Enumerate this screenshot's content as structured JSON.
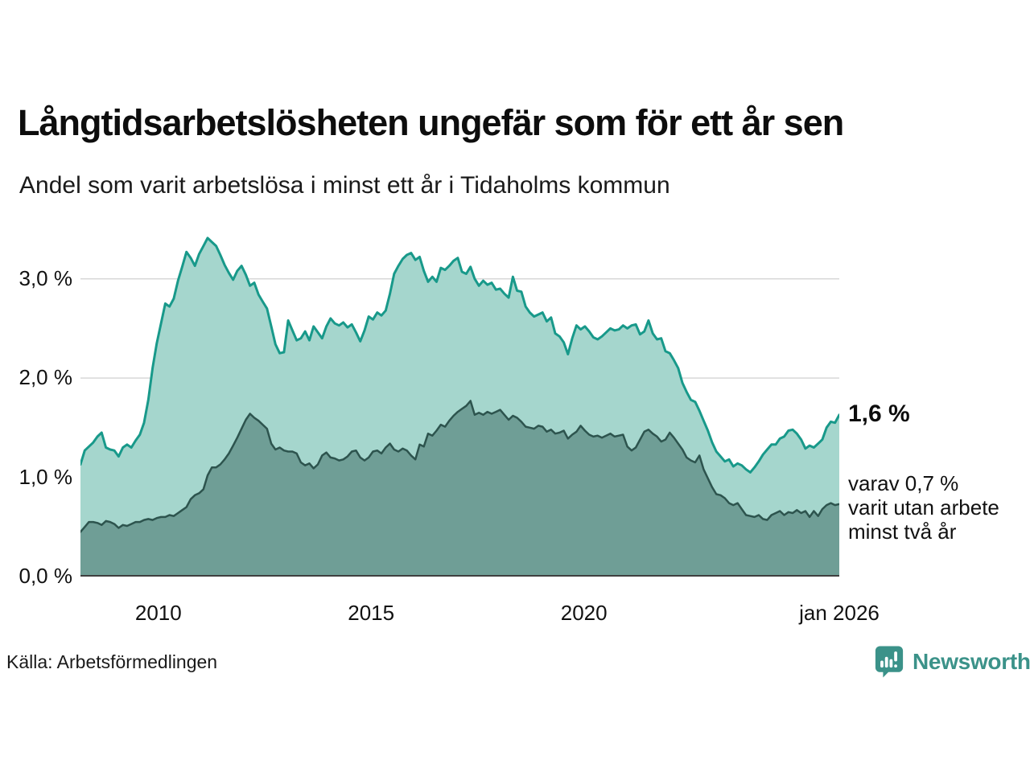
{
  "header": {
    "title": "Långtidsarbetslösheten ungefär som för ett år sen",
    "subtitle": "Andel som varit arbetslösa i minst ett år i Tidaholms kommun"
  },
  "chart_data": {
    "type": "area",
    "title": "Långtidsarbetslösheten ungefär som för ett år sen",
    "subtitle": "Andel som varit arbetslösa i minst ett år i Tidaholms kommun",
    "x_start": 2008.17,
    "x_end": 2026.0,
    "ylim": [
      0,
      3.54
    ],
    "grid": "horizontal",
    "yticks": [
      {
        "value": 0.0,
        "label": "0,0 %"
      },
      {
        "value": 1.0,
        "label": "1,0 %"
      },
      {
        "value": 2.0,
        "label": "2,0 %"
      },
      {
        "value": 3.0,
        "label": "3,0 %"
      }
    ],
    "xticks": [
      {
        "value": 2010,
        "label": "2010"
      },
      {
        "value": 2015,
        "label": "2015"
      },
      {
        "value": 2020,
        "label": "2020"
      },
      {
        "value": 2026.0,
        "label": "jan 2026"
      }
    ],
    "series": [
      {
        "name": "Andel som varit arbetslösa i minst ett år",
        "line_color": "#18998a",
        "fill_color": "#a5d6cd",
        "line_width": 3,
        "last_value": "1,6 %",
        "values": [
          1.13,
          1.27,
          1.31,
          1.35,
          1.41,
          1.45,
          1.3,
          1.28,
          1.27,
          1.21,
          1.3,
          1.33,
          1.3,
          1.37,
          1.43,
          1.55,
          1.78,
          2.1,
          2.35,
          2.55,
          2.75,
          2.72,
          2.8,
          2.98,
          3.12,
          3.27,
          3.21,
          3.13,
          3.25,
          3.33,
          3.41,
          3.37,
          3.33,
          3.24,
          3.14,
          3.06,
          2.99,
          3.08,
          3.13,
          3.04,
          2.93,
          2.96,
          2.84,
          2.77,
          2.7,
          2.52,
          2.34,
          2.25,
          2.26,
          2.58,
          2.48,
          2.38,
          2.4,
          2.47,
          2.38,
          2.52,
          2.46,
          2.4,
          2.52,
          2.6,
          2.55,
          2.53,
          2.56,
          2.51,
          2.54,
          2.46,
          2.37,
          2.48,
          2.62,
          2.59,
          2.66,
          2.63,
          2.68,
          2.85,
          3.05,
          3.13,
          3.2,
          3.24,
          3.26,
          3.19,
          3.22,
          3.08,
          2.97,
          3.02,
          2.97,
          3.11,
          3.09,
          3.13,
          3.18,
          3.21,
          3.07,
          3.05,
          3.12,
          3.0,
          2.93,
          2.98,
          2.94,
          2.96,
          2.89,
          2.9,
          2.85,
          2.81,
          3.02,
          2.88,
          2.87,
          2.72,
          2.66,
          2.62,
          2.64,
          2.66,
          2.57,
          2.61,
          2.45,
          2.42,
          2.36,
          2.24,
          2.4,
          2.53,
          2.49,
          2.52,
          2.47,
          2.41,
          2.39,
          2.42,
          2.46,
          2.5,
          2.48,
          2.49,
          2.53,
          2.5,
          2.53,
          2.54,
          2.44,
          2.47,
          2.58,
          2.45,
          2.39,
          2.4,
          2.27,
          2.25,
          2.18,
          2.1,
          1.95,
          1.86,
          1.78,
          1.76,
          1.67,
          1.57,
          1.47,
          1.35,
          1.26,
          1.21,
          1.16,
          1.18,
          1.11,
          1.14,
          1.12,
          1.08,
          1.05,
          1.1,
          1.16,
          1.23,
          1.28,
          1.33,
          1.33,
          1.39,
          1.41,
          1.47,
          1.48,
          1.44,
          1.38,
          1.29,
          1.32,
          1.3,
          1.34,
          1.38,
          1.5,
          1.56,
          1.55,
          1.63
        ]
      },
      {
        "name": "varav utan arbete minst två år",
        "line_color": "#2d544e",
        "fill_color": "#6f9e96",
        "line_width": 2.5,
        "last_value": "0,7 %",
        "values": [
          0.45,
          0.5,
          0.55,
          0.55,
          0.54,
          0.52,
          0.56,
          0.55,
          0.53,
          0.49,
          0.52,
          0.51,
          0.53,
          0.55,
          0.55,
          0.57,
          0.58,
          0.57,
          0.59,
          0.6,
          0.6,
          0.62,
          0.61,
          0.64,
          0.67,
          0.7,
          0.78,
          0.82,
          0.84,
          0.88,
          1.02,
          1.1,
          1.1,
          1.13,
          1.18,
          1.24,
          1.32,
          1.4,
          1.49,
          1.58,
          1.64,
          1.6,
          1.57,
          1.53,
          1.49,
          1.34,
          1.28,
          1.3,
          1.27,
          1.26,
          1.26,
          1.24,
          1.15,
          1.12,
          1.14,
          1.09,
          1.13,
          1.22,
          1.25,
          1.2,
          1.19,
          1.17,
          1.18,
          1.21,
          1.26,
          1.27,
          1.2,
          1.17,
          1.2,
          1.26,
          1.27,
          1.24,
          1.3,
          1.34,
          1.28,
          1.26,
          1.29,
          1.27,
          1.22,
          1.18,
          1.33,
          1.31,
          1.44,
          1.42,
          1.47,
          1.53,
          1.51,
          1.57,
          1.62,
          1.66,
          1.69,
          1.72,
          1.77,
          1.63,
          1.65,
          1.63,
          1.66,
          1.64,
          1.66,
          1.68,
          1.63,
          1.58,
          1.62,
          1.6,
          1.56,
          1.51,
          1.5,
          1.49,
          1.52,
          1.51,
          1.46,
          1.48,
          1.44,
          1.45,
          1.47,
          1.39,
          1.43,
          1.46,
          1.52,
          1.47,
          1.43,
          1.41,
          1.42,
          1.4,
          1.42,
          1.44,
          1.41,
          1.42,
          1.43,
          1.31,
          1.27,
          1.3,
          1.38,
          1.46,
          1.48,
          1.44,
          1.41,
          1.36,
          1.38,
          1.45,
          1.4,
          1.34,
          1.28,
          1.2,
          1.17,
          1.15,
          1.22,
          1.08,
          0.99,
          0.9,
          0.83,
          0.82,
          0.79,
          0.74,
          0.72,
          0.74,
          0.68,
          0.62,
          0.61,
          0.6,
          0.62,
          0.58,
          0.57,
          0.62,
          0.64,
          0.66,
          0.62,
          0.65,
          0.64,
          0.67,
          0.64,
          0.66,
          0.6,
          0.66,
          0.61,
          0.68,
          0.72,
          0.74,
          0.72,
          0.73
        ]
      }
    ],
    "annotations": {
      "last_value_label": "1,6 %",
      "note_lines": [
        "varav 0,7 %",
        "varit utan arbete",
        "minst två år"
      ]
    },
    "colors": {
      "gridline": "#d8d8d8",
      "axis_line": "#3f3f3f"
    }
  },
  "footer": {
    "source": "Källa: Arbetsförmedlingen",
    "logo_text": "Newsworthy",
    "logo_color": "#3b9289"
  }
}
